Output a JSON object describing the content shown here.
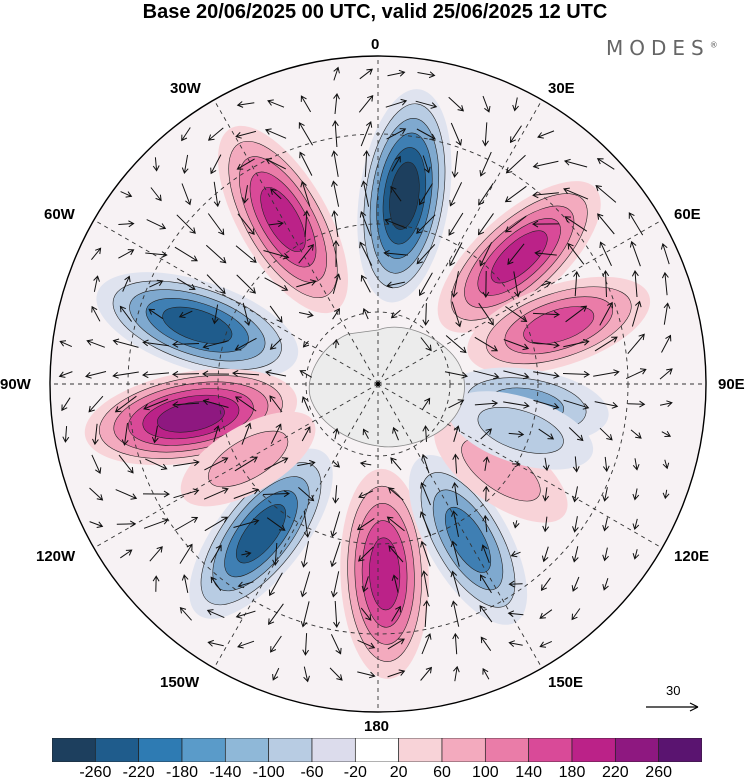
{
  "title": "Base 20/06/2025 00 UTC, valid 25/06/2025 12 UTC",
  "brand": "MODES",
  "brand_mark": "®",
  "longitude_labels": {
    "top": "0",
    "top_left": "30W",
    "top_right": "30E",
    "upper_left": "60W",
    "upper_right": "60E",
    "left": "90W",
    "right": "90E",
    "lower_left": "120W",
    "lower_right": "120E",
    "bottom_left": "150W",
    "bottom_right": "150E",
    "bottom": "180"
  },
  "reference_vector_label": "30",
  "colorbar": {
    "colors": [
      "#1d3f5e",
      "#1f5c8c",
      "#2e7bb3",
      "#5a9bc9",
      "#8fb8d8",
      "#b8cce3",
      "#dcdcec",
      "#ffffff",
      "#f8d3d8",
      "#f3aabe",
      "#ea7ca8",
      "#d94a98",
      "#bb2288",
      "#8e1880",
      "#5a1470"
    ],
    "tick_labels": [
      "-260",
      "-220",
      "-180",
      "-140",
      "-100",
      "-60",
      "-20",
      "20",
      "60",
      "100",
      "140",
      "180",
      "220",
      "260"
    ]
  },
  "anomaly_centers": [
    {
      "lon": 8,
      "type": "negative",
      "strength": 0.95
    },
    {
      "lon": -30,
      "type": "positive",
      "strength": 0.9
    },
    {
      "lon": 48,
      "type": "positive",
      "strength": 0.85
    },
    {
      "lon": -72,
      "type": "negative",
      "strength": 0.9
    },
    {
      "lon": -100,
      "type": "positive",
      "strength": 0.95
    },
    {
      "lon": -142,
      "type": "negative",
      "strength": 0.85
    },
    {
      "lon": 178,
      "type": "positive",
      "strength": 0.9
    },
    {
      "lon": 150,
      "type": "negative",
      "strength": 0.7
    },
    {
      "lon": 72,
      "type": "positive",
      "strength": 0.7
    },
    {
      "lon": 98,
      "type": "negative",
      "strength": 0.45
    },
    {
      "lon": 125,
      "type": "positive",
      "strength": 0.35
    },
    {
      "lon": 108,
      "type": "negative",
      "strength": 0.3
    },
    {
      "lon": -120,
      "type": "positive",
      "strength": 0.3
    }
  ]
}
